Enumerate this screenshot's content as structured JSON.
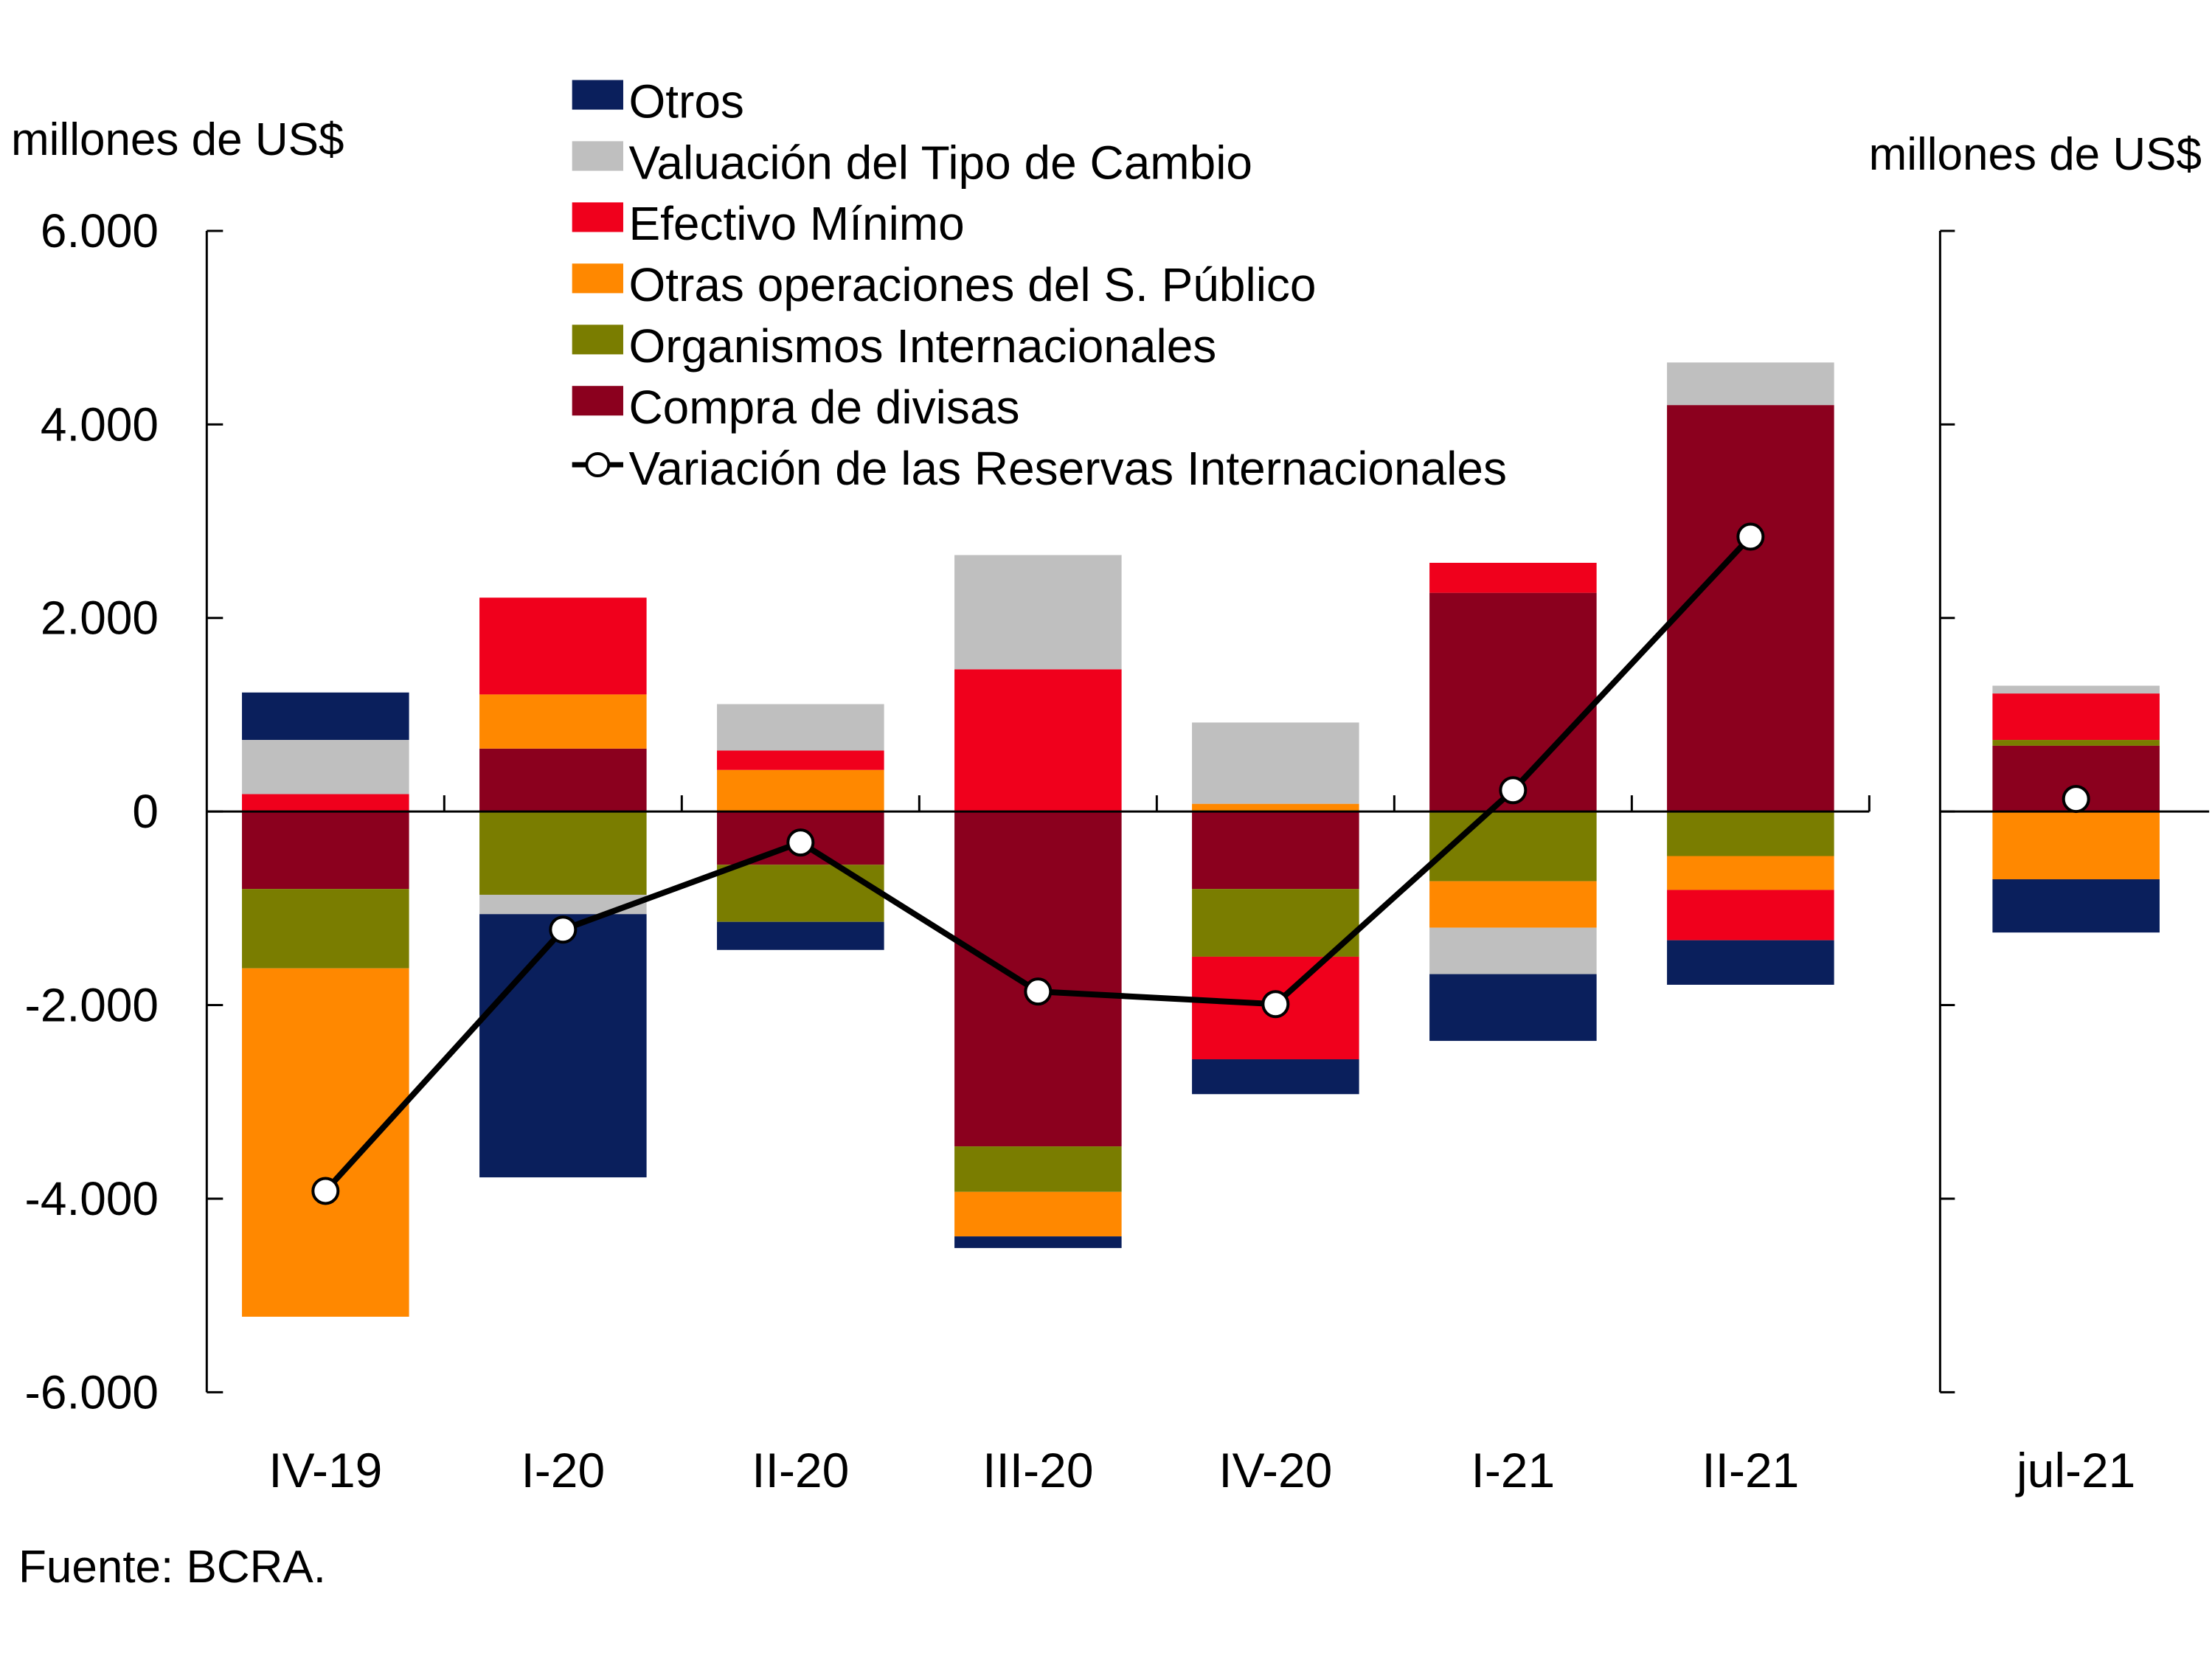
{
  "chart_data": {
    "type": "bar",
    "stacked": true,
    "left_ylabel": "millones de US$",
    "right_ylabel": "millones de US$",
    "ylim": [
      -6000,
      6000
    ],
    "yticks": [
      6000,
      4000,
      2000,
      0,
      -2000,
      -4000,
      -6000
    ],
    "ytick_labels": [
      "6.000",
      "4.000",
      "2.000",
      "0",
      "-2.000",
      "-4.000",
      "-6.000"
    ],
    "categories": [
      "IV-19",
      "I-20",
      "II-20",
      "III-20",
      "IV-20",
      "I-21",
      "II-21"
    ],
    "right_categories": [
      "jul-21"
    ],
    "legend_position": "top-center",
    "series": [
      {
        "name": "Compra de divisas",
        "color": "#8B001E",
        "values": [
          -800,
          650,
          -550,
          -3460,
          -800,
          2260,
          4200
        ],
        "right_values": [
          680
        ]
      },
      {
        "name": "Organismos Internacionales",
        "color": "#7A7D00",
        "values": [
          -820,
          -860,
          -590,
          -470,
          -700,
          -720,
          -460
        ],
        "right_values": [
          60
        ]
      },
      {
        "name": "Otras operaciones del S. Público",
        "color": "#FF8800",
        "values": [
          -3600,
          560,
          430,
          -460,
          80,
          -480,
          -350
        ],
        "right_values": [
          -700
        ]
      },
      {
        "name": "Efectivo Mínimo",
        "color": "#F0001C",
        "values": [
          180,
          1000,
          200,
          1470,
          -1060,
          310,
          -520
        ],
        "right_values": [
          480
        ]
      },
      {
        "name": "Valuación del Tipo de Cambio",
        "color": "#BFBFBF",
        "values": [
          560,
          -200,
          480,
          1180,
          840,
          -480,
          440
        ],
        "right_values": [
          80
        ]
      },
      {
        "name": "Otros",
        "color": "#0A1F5C",
        "values": [
          490,
          -2720,
          -290,
          -120,
          -360,
          -690,
          -460
        ],
        "right_values": [
          -550
        ]
      }
    ],
    "line": {
      "name": "Variación de las Reservas Internacionales",
      "color": "#000000",
      "values": [
        -3920,
        -1220,
        -320,
        -1860,
        -1990,
        220,
        2840
      ],
      "right_values": [
        130
      ]
    },
    "legend_order": [
      "Otros",
      "Valuación del Tipo de Cambio",
      "Efectivo Mínimo",
      "Otras operaciones del S. Público",
      "Organismos Internacionales",
      "Compra de divisas",
      "Variación de las Reservas Internacionales"
    ]
  },
  "source": "Fuente: BCRA."
}
